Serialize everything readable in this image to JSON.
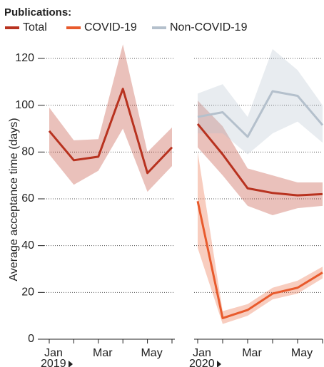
{
  "chart_data": {
    "type": "line",
    "legend_title": "Publications:",
    "ylabel": "Average acceptance time (days)",
    "ylim": [
      0,
      125
    ],
    "yticks": [
      0,
      20,
      40,
      60,
      80,
      100,
      120
    ],
    "grid": true,
    "panels": [
      {
        "year": "2019",
        "categories": [
          "Jan",
          null,
          "Mar",
          null,
          "May",
          null
        ],
        "series": [
          {
            "name": "Total",
            "color": "#b8321f",
            "values": [
              89,
              76.5,
              78,
              107,
              71,
              82
            ],
            "lower": [
              79,
              66,
              72,
              90,
              63,
              74
            ],
            "upper": [
              99,
              85,
              85.5,
              126,
              80,
              90.5
            ]
          }
        ]
      },
      {
        "year": "2020",
        "categories": [
          "Jan",
          null,
          "Mar",
          null,
          "May",
          null
        ],
        "series": [
          {
            "name": "Total",
            "color": "#b8321f",
            "values": [
              92,
              79,
              64.5,
              62.5,
              61.5,
              62
            ],
            "lower": [
              82,
              70,
              57,
              53,
              56,
              57
            ],
            "upper": [
              102,
              91,
              73,
              70,
              67,
              67
            ]
          },
          {
            "name": "COVID-19",
            "color": "#e85a2c",
            "values": [
              59,
              9,
              12.5,
              19.5,
              22,
              28.5
            ],
            "lower": [
              39,
              6.5,
              10,
              17,
              19.5,
              26
            ],
            "upper": [
              80,
              12,
              15,
              22,
              25,
              31
            ]
          },
          {
            "name": "Non-COVID-19",
            "color": "#b4c0cc",
            "values": [
              95,
              97,
              86.5,
              106,
              104,
              91.5
            ],
            "lower": [
              88,
              88,
              79,
              88,
              93,
              84
            ],
            "upper": [
              105,
              109,
              95,
              124,
              115,
              100
            ]
          }
        ]
      }
    ]
  }
}
